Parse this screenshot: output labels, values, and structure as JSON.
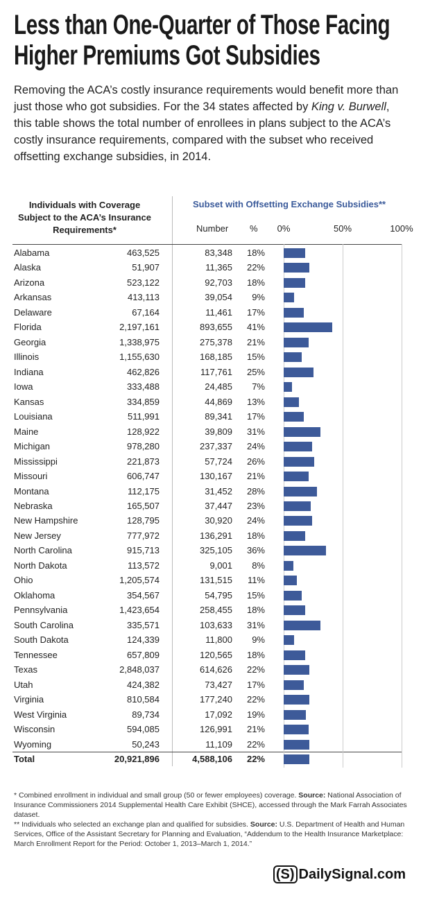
{
  "chart_data": {
    "type": "bar",
    "title": "Less than One-Quarter of Those Facing Higher Premiums Got Subsidies",
    "subtitle": [
      "Removing the ACA’s costly insurance requirements would benefit more than just those who got subsidies. For the 34 states affected by ",
      "King v. Burwell",
      ", this table shows the total number of enrollees in plans subject to the ACA’s costly insurance requirements, compared with the subset who received offsetting exchange subsidies, in 2014."
    ],
    "left_header": "Individuals with Coverage Subject to the ACA’s Insurance Requirements*",
    "right_header": "Subset with Offsetting Exchange Subsidies**",
    "number_header": "Number",
    "percent_header": "%",
    "categories": [
      "Alabama",
      "Alaska",
      "Arizona",
      "Arkansas",
      "Delaware",
      "Florida",
      "Georgia",
      "Illinois",
      "Indiana",
      "Iowa",
      "Kansas",
      "Louisiana",
      "Maine",
      "Michigan",
      "Mississippi",
      "Missouri",
      "Montana",
      "Nebraska",
      "New Hampshire",
      "New Jersey",
      "North Carolina",
      "North Dakota",
      "Ohio",
      "Oklahoma",
      "Pennsylvania",
      "South Carolina",
      "South Dakota",
      "Tennessee",
      "Texas",
      "Utah",
      "Virginia",
      "West Virginia",
      "Wisconsin",
      "Wyoming",
      "Total"
    ],
    "coverage": [
      "463,525",
      "51,907",
      "523,122",
      "413,113",
      "67,164",
      "2,197,161",
      "1,338,975",
      "1,155,630",
      "462,826",
      "333,488",
      "334,859",
      "511,991",
      "128,922",
      "978,280",
      "221,873",
      "606,747",
      "112,175",
      "165,507",
      "128,795",
      "777,972",
      "915,713",
      "113,572",
      "1,205,574",
      "354,567",
      "1,423,654",
      "335,571",
      "124,339",
      "657,809",
      "2,848,037",
      "424,382",
      "810,584",
      "89,734",
      "594,085",
      "50,243",
      "20,921,896"
    ],
    "subsidized": [
      "83,348",
      "11,365",
      "92,703",
      "39,054",
      "11,461",
      "893,655",
      "275,378",
      "168,185",
      "117,761",
      "24,485",
      "44,869",
      "89,341",
      "39,809",
      "237,337",
      "57,724",
      "130,167",
      "31,452",
      "37,447",
      "30,920",
      "136,291",
      "325,105",
      "9,001",
      "131,515",
      "54,795",
      "258,455",
      "103,633",
      "11,800",
      "120,565",
      "614,626",
      "73,427",
      "177,240",
      "17,092",
      "126,991",
      "11,109",
      "4,588,106"
    ],
    "values": [
      18,
      22,
      18,
      9,
      17,
      41,
      21,
      15,
      25,
      7,
      13,
      17,
      31,
      24,
      26,
      21,
      28,
      23,
      24,
      18,
      36,
      8,
      11,
      15,
      18,
      31,
      9,
      18,
      22,
      17,
      22,
      19,
      21,
      22,
      22
    ],
    "value_labels": [
      "18%",
      "22%",
      "18%",
      "9%",
      "17%",
      "41%",
      "21%",
      "15%",
      "25%",
      "7%",
      "13%",
      "17%",
      "31%",
      "24%",
      "26%",
      "21%",
      "28%",
      "23%",
      "24%",
      "18%",
      "36%",
      "8%",
      "11%",
      "15%",
      "18%",
      "31%",
      "9%",
      "18%",
      "22%",
      "17%",
      "22%",
      "19%",
      "21%",
      "22%",
      "22%"
    ],
    "color": "#3d5a99",
    "xlim": [
      0,
      100
    ],
    "xticks": [
      {
        "value": 0,
        "label": "0%"
      },
      {
        "value": 50,
        "label": "50%"
      },
      {
        "value": 100,
        "label": "100%"
      }
    ],
    "grid": true,
    "footnotes": [
      [
        "* Combined enrollment in individual and small group (50 or fewer employees) coverage. ",
        "Source:",
        " National Association of Insurance Commissioners 2014 Supplemental Health Care Exhibit (SHCE), accessed through the Mark Farrah Associates dataset."
      ],
      [
        "** Individuals who selected an exchange plan and qualified for subsidies. ",
        "Source:",
        " U.S. Department of Health and Human Services, Office of the Assistant Secretary for Planning and Evaluation, “Addendum to the Health Insurance Marketplace: March Enrollment Report for the Period: October 1, 2013–March 1, 2014.”"
      ]
    ],
    "logo": {
      "mark": "(S)",
      "text": "DailySignal.com"
    }
  }
}
